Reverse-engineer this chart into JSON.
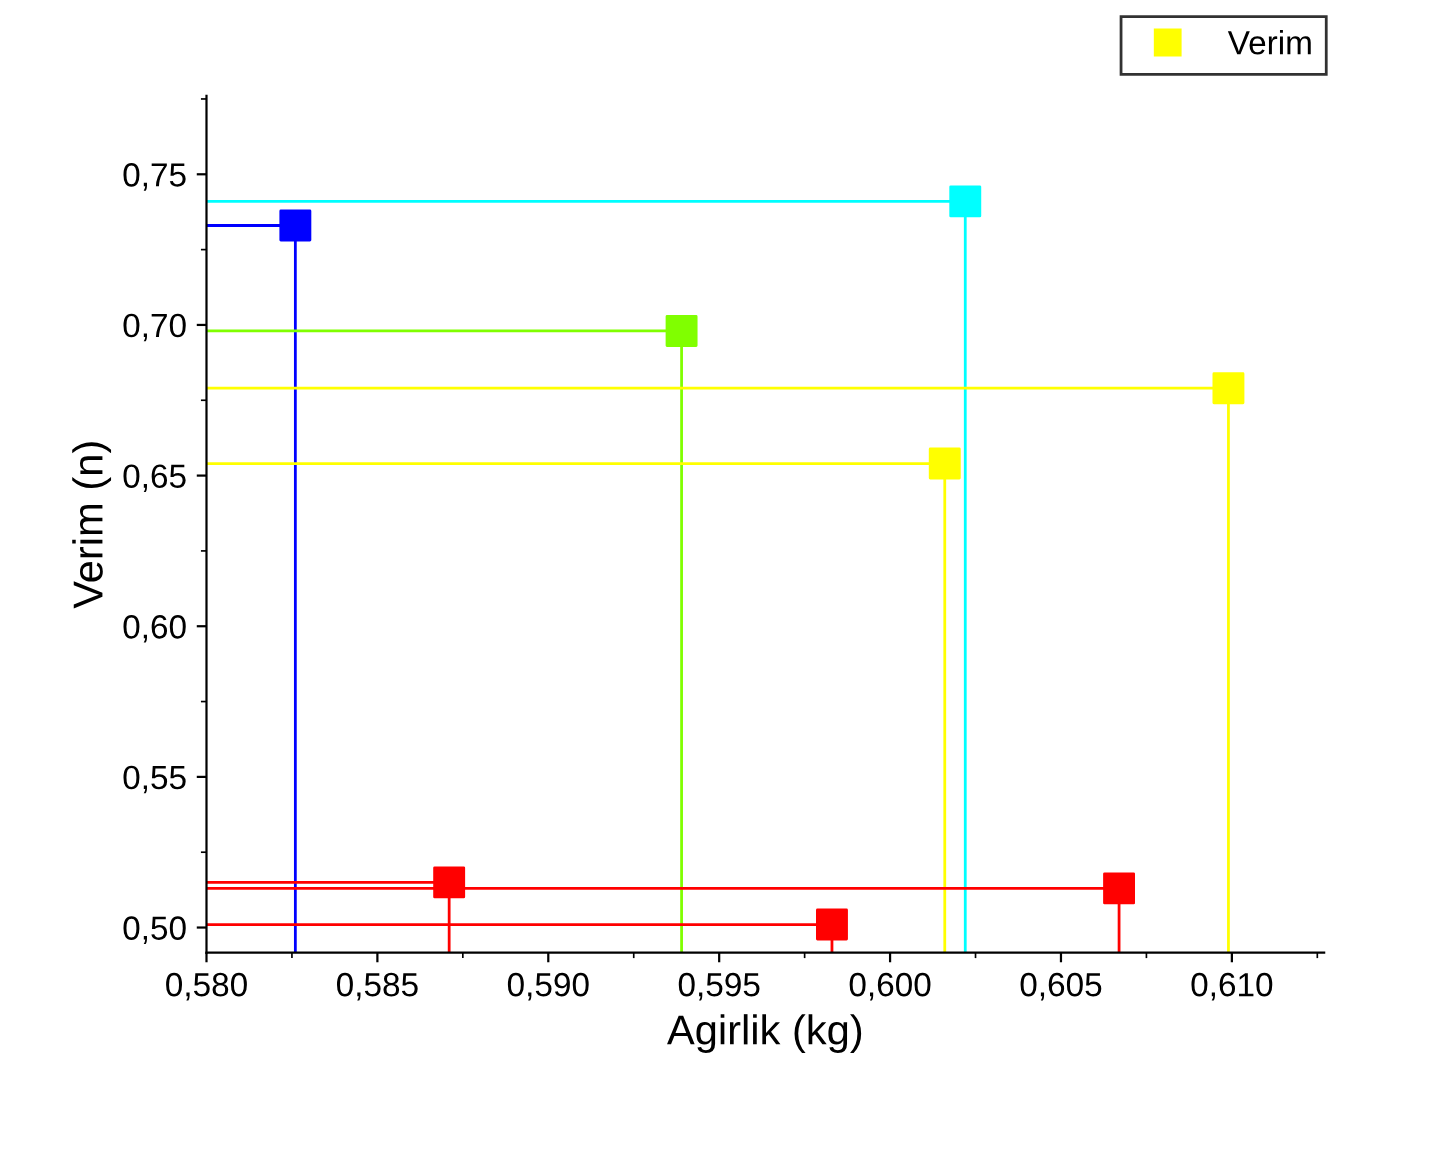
{
  "chart_data": {
    "type": "lollipop",
    "xlabel": "Agirlik (kg)",
    "ylabel": "Verim (n)",
    "x": [
      0.5826,
      0.6022,
      0.5939,
      0.6099,
      0.6016,
      0.5871,
      0.5983,
      0.6067
    ],
    "series": [
      {
        "name": "Verim",
        "color": "#ffff00",
        "marker": "square",
        "colors": [
          "#0000ff",
          "#00ffff",
          "#80ff00",
          "#ffff00",
          "#ffff00",
          "#ff0000",
          "#ff0000",
          "#ff0000"
        ],
        "values": [
          0.733,
          0.741,
          0.698,
          0.679,
          0.654,
          0.515,
          0.501,
          0.513
        ]
      },
      {
        "type": "line",
        "marker": "none",
        "color": "#0000ff",
        "x": [
          0.58,
          0.5826
        ],
        "values": [
          0.733,
          0.733
        ]
      },
      {
        "type": "line",
        "marker": "none",
        "color": "#00ffff",
        "x": [
          0.58,
          0.6022
        ],
        "values": [
          0.741,
          0.741
        ]
      },
      {
        "type": "line",
        "marker": "none",
        "color": "#80ff00",
        "x": [
          0.58,
          0.5939
        ],
        "values": [
          0.698,
          0.698
        ]
      },
      {
        "type": "line",
        "marker": "none",
        "color": "#ffff00",
        "x": [
          0.58,
          0.6099
        ],
        "values": [
          0.679,
          0.679
        ]
      },
      {
        "type": "line",
        "marker": "none",
        "color": "#ffff00",
        "x": [
          0.58,
          0.6016
        ],
        "values": [
          0.654,
          0.654
        ]
      },
      {
        "type": "line",
        "marker": "none",
        "color": "#ff0000",
        "x": [
          0.58,
          0.5871
        ],
        "values": [
          0.515,
          0.515
        ]
      },
      {
        "type": "line",
        "marker": "none",
        "color": "#ff0000",
        "x": [
          0.58,
          0.5983
        ],
        "values": [
          0.501,
          0.501
        ]
      },
      {
        "type": "line",
        "marker": "none",
        "color": "#ff0000",
        "x": [
          0.58,
          0.6067
        ],
        "values": [
          0.513,
          0.513
        ]
      }
    ],
    "xlim": [
      0.58,
      0.6127
    ],
    "ylim": [
      0.4917,
      0.776
    ],
    "xticks": [
      {
        "value": 0.58,
        "label": "0,580"
      },
      {
        "value": 0.585,
        "label": "0,585"
      },
      {
        "value": 0.59,
        "label": "0,590"
      },
      {
        "value": 0.595,
        "label": "0,595"
      },
      {
        "value": 0.6,
        "label": "0,600"
      },
      {
        "value": 0.605,
        "label": "0,605"
      },
      {
        "value": 0.61,
        "label": "0,610"
      }
    ],
    "yticks": [
      {
        "value": 0.5,
        "label": "0,50"
      },
      {
        "value": 0.55,
        "label": "0,55"
      },
      {
        "value": 0.6,
        "label": "0,60"
      },
      {
        "value": 0.65,
        "label": "0,65"
      },
      {
        "value": 0.7,
        "label": "0,70"
      },
      {
        "value": 0.75,
        "label": "0,75"
      }
    ],
    "legend": "top right",
    "grid": false
  }
}
